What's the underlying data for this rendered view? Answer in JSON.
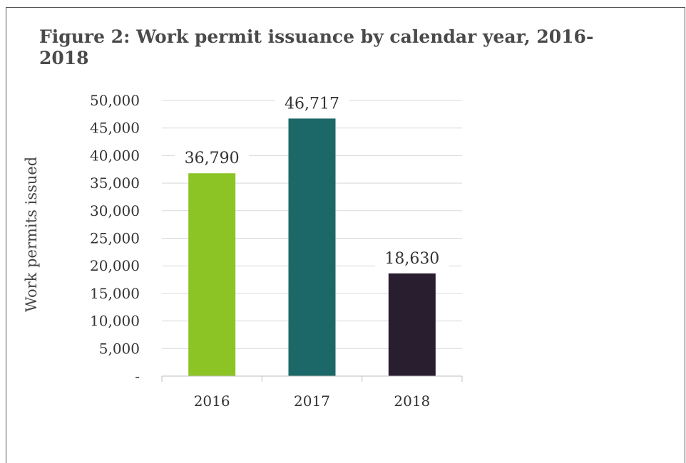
{
  "chart_data": {
    "type": "bar",
    "title": "Figure 2: Work permit issuance by calendar year, 2016-2018",
    "xlabel": "",
    "ylabel": "Work permits issued",
    "categories": [
      "2016",
      "2017",
      "2018"
    ],
    "values": [
      36790,
      46717,
      18630
    ],
    "value_labels": [
      "36,790",
      "46,717",
      "18,630"
    ],
    "colors": [
      "#8cc425",
      "#1c6767",
      "#291d30"
    ],
    "ylim": [
      0,
      50000
    ],
    "yticks": [
      0,
      5000,
      10000,
      15000,
      20000,
      25000,
      30000,
      35000,
      40000,
      45000,
      50000
    ],
    "ytick_labels": [
      "-",
      "5,000",
      "10,000",
      "15,000",
      "20,000",
      "25,000",
      "30,000",
      "35,000",
      "40,000",
      "45,000",
      "50,000"
    ],
    "grid": true,
    "legend": false
  }
}
